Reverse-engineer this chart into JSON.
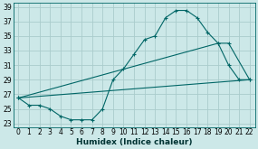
{
  "xlabel": "Humidex (Indice chaleur)",
  "xlim": [
    -0.5,
    22.5
  ],
  "ylim": [
    22.5,
    39.5
  ],
  "yticks": [
    23,
    25,
    27,
    29,
    31,
    33,
    35,
    37,
    39
  ],
  "xticks": [
    0,
    1,
    2,
    3,
    4,
    5,
    6,
    7,
    8,
    9,
    10,
    11,
    12,
    13,
    14,
    15,
    16,
    17,
    18,
    19,
    20,
    21,
    22
  ],
  "bg_color": "#cce8e8",
  "grid_color": "#aacccc",
  "line_color": "#006666",
  "line1_x": [
    0,
    1,
    2,
    3,
    4,
    5,
    6,
    7,
    8,
    9,
    10,
    11,
    12,
    13,
    14,
    15,
    16,
    17,
    18,
    19,
    20,
    21,
    22
  ],
  "line1_y": [
    26.5,
    25.5,
    25.5,
    25.0,
    24.0,
    23.5,
    23.5,
    23.5,
    25.0,
    29.0,
    30.5,
    32.5,
    34.5,
    35.0,
    37.5,
    38.5,
    38.5,
    37.5,
    35.5,
    34.0,
    31.0,
    29.0,
    29.0
  ],
  "line2_x": [
    0,
    19,
    20,
    22
  ],
  "line2_y": [
    26.5,
    34.0,
    34.0,
    29.0
  ],
  "line3_x": [
    0,
    22
  ],
  "line3_y": [
    26.5,
    29.0
  ],
  "tick_fontsize": 5.5,
  "xlabel_fontsize": 6.5
}
